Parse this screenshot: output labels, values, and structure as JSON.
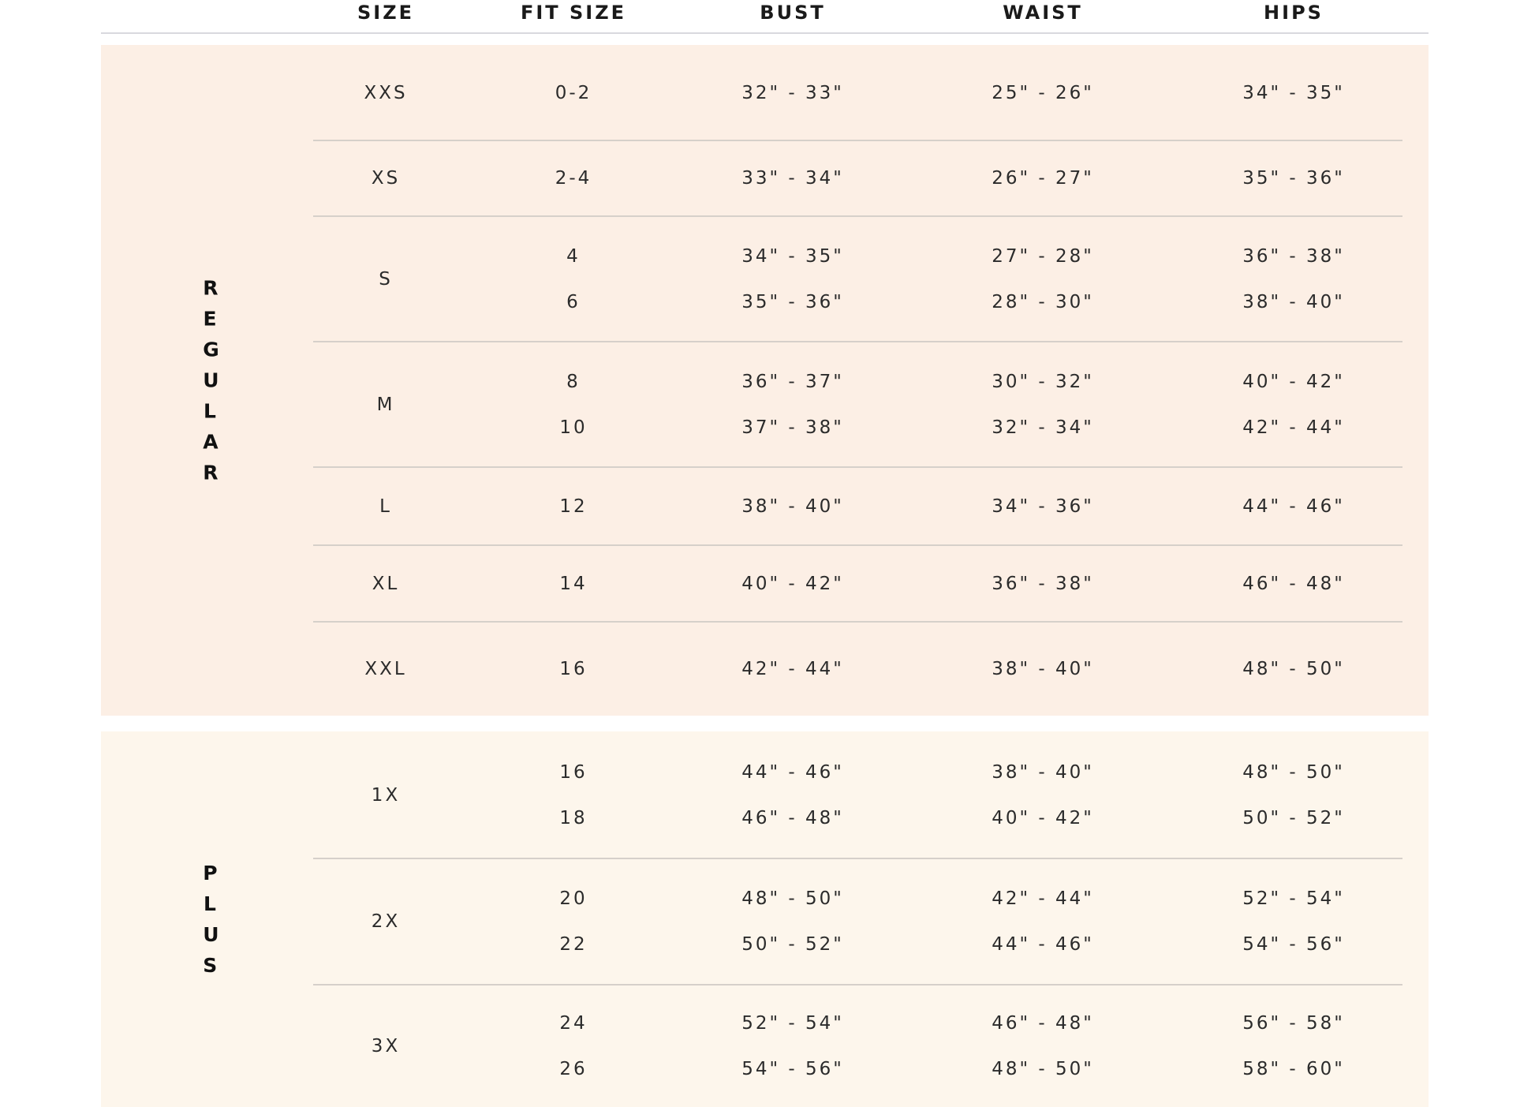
{
  "table": {
    "headers": [
      "SIZE",
      "FIT SIZE",
      "BUST",
      "WAIST",
      "HIPS"
    ],
    "sections": [
      {
        "label": "REGULAR",
        "rows": [
          {
            "size": "XXS",
            "lines": [
              [
                "0-2",
                "32\" - 33\"",
                "25\" - 26\"",
                "34\" - 35\""
              ]
            ]
          },
          {
            "size": "XS",
            "lines": [
              [
                "2-4",
                "33\" - 34\"",
                "26\" - 27\"",
                "35\" - 36\""
              ]
            ]
          },
          {
            "size": "S",
            "lines": [
              [
                "4",
                "34\" - 35\"",
                "27\" - 28\"",
                "36\" - 38\""
              ],
              [
                "6",
                "35\" - 36\"",
                "28\" - 30\"",
                "38\" - 40\""
              ]
            ]
          },
          {
            "size": "M",
            "lines": [
              [
                "8",
                "36\" - 37\"",
                "30\" - 32\"",
                "40\" - 42\""
              ],
              [
                "10",
                "37\" - 38\"",
                "32\" - 34\"",
                "42\" - 44\""
              ]
            ]
          },
          {
            "size": "L",
            "lines": [
              [
                "12",
                "38\" - 40\"",
                "34\" - 36\"",
                "44\" - 46\""
              ]
            ]
          },
          {
            "size": "XL",
            "lines": [
              [
                "14",
                "40\" - 42\"",
                "36\" - 38\"",
                "46\" - 48\""
              ]
            ]
          },
          {
            "size": "XXL",
            "lines": [
              [
                "16",
                "42\" - 44\"",
                "38\" - 40\"",
                "48\" - 50\""
              ]
            ]
          }
        ]
      },
      {
        "label": "PLUS",
        "rows": [
          {
            "size": "1X",
            "lines": [
              [
                "16",
                "44\" - 46\"",
                "38\" - 40\"",
                "48\" - 50\""
              ],
              [
                "18",
                "46\" - 48\"",
                "40\" - 42\"",
                "50\" - 52\""
              ]
            ]
          },
          {
            "size": "2X",
            "lines": [
              [
                "20",
                "48\" - 50\"",
                "42\" - 44\"",
                "52\" - 54\""
              ],
              [
                "22",
                "50\" - 52\"",
                "44\" - 46\"",
                "54\" - 56\""
              ]
            ]
          },
          {
            "size": "3X",
            "lines": [
              [
                "24",
                "52\" - 54\"",
                "46\" - 48\"",
                "56\" - 58\""
              ],
              [
                "26",
                "54\" - 56\"",
                "48\" - 50\"",
                "58\" - 60\""
              ]
            ]
          }
        ]
      }
    ]
  }
}
